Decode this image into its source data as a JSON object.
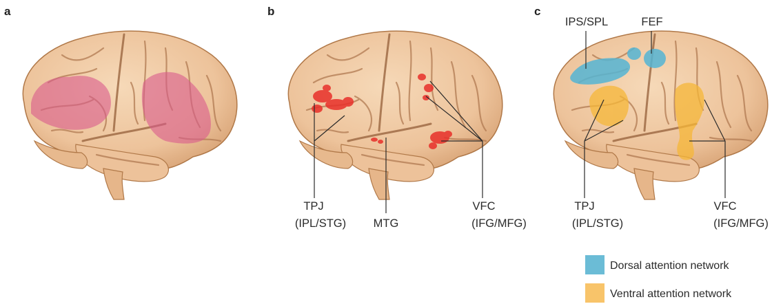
{
  "panels": [
    {
      "letter": "a",
      "labels": []
    },
    {
      "letter": "b",
      "labels": [
        "TPJ",
        "(IPL/STG)",
        "MTG",
        "VFC",
        "(IFG/MFG)"
      ]
    },
    {
      "letter": "c",
      "labels": [
        "IPS/SPL",
        "FEF",
        "TPJ",
        "(IPL/STG)",
        "VFC",
        "(IFG/MFG)"
      ]
    }
  ],
  "legend": {
    "items": [
      {
        "label": "Dorsal attention network",
        "color": "#6bbcd6"
      },
      {
        "label": "Ventral attention network",
        "color": "#f8c46a"
      }
    ]
  },
  "colors": {
    "brain": "#efc7a0",
    "brain_outline": "#a86d44",
    "panel_a_region": "#d95a8c",
    "panel_b_activation": "#e8302a",
    "dorsal": "#55b5d4",
    "ventral": "#f6b738"
  }
}
